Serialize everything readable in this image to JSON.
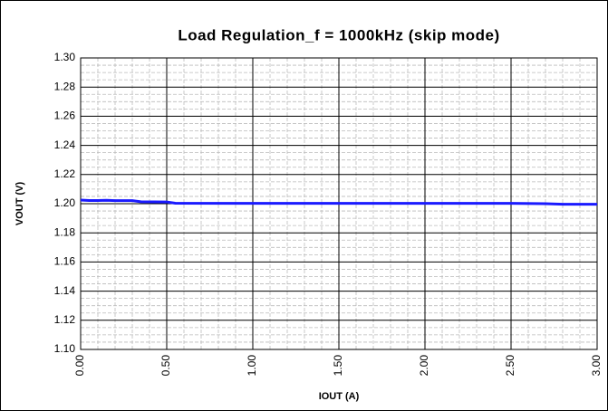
{
  "chart_data": {
    "type": "line",
    "title": "Load Regulation_f = 1000kHz (skip mode)",
    "xlabel": "IOUT (A)",
    "ylabel": "VOUT (V)",
    "x": [
      0,
      0.05,
      0.1,
      0.15,
      0.2,
      0.3,
      0.35,
      0.5,
      0.55,
      1.0,
      1.5,
      2.0,
      2.5,
      2.7,
      2.8,
      3.0
    ],
    "series": [
      {
        "name": "VOUT",
        "color": "#1a1aff",
        "values": [
          1.2025,
          1.2022,
          1.2022,
          1.2023,
          1.2021,
          1.2021,
          1.2013,
          1.2012,
          1.2003,
          1.2002,
          1.2002,
          1.2002,
          1.2002,
          1.2,
          1.1996,
          1.1996
        ]
      }
    ],
    "xlim": [
      0,
      3
    ],
    "ylim": [
      1.1,
      1.3
    ],
    "xticks": [
      {
        "value": 0,
        "label": "0.00"
      },
      {
        "value": 0.5,
        "label": "0.50"
      },
      {
        "value": 1,
        "label": "1.00"
      },
      {
        "value": 1.5,
        "label": "1.50"
      },
      {
        "value": 2,
        "label": "2.00"
      },
      {
        "value": 2.5,
        "label": "2.50"
      },
      {
        "value": 3,
        "label": "3.00"
      }
    ],
    "yticks": [
      {
        "value": 1.1,
        "label": "1.10"
      },
      1.12,
      1.14,
      1.16,
      1.18,
      {
        "value": 1.2,
        "label": "1.20"
      },
      1.22,
      1.24,
      1.26,
      1.28,
      {
        "value": 1.3,
        "label": "1.30"
      }
    ],
    "grid": true
  }
}
